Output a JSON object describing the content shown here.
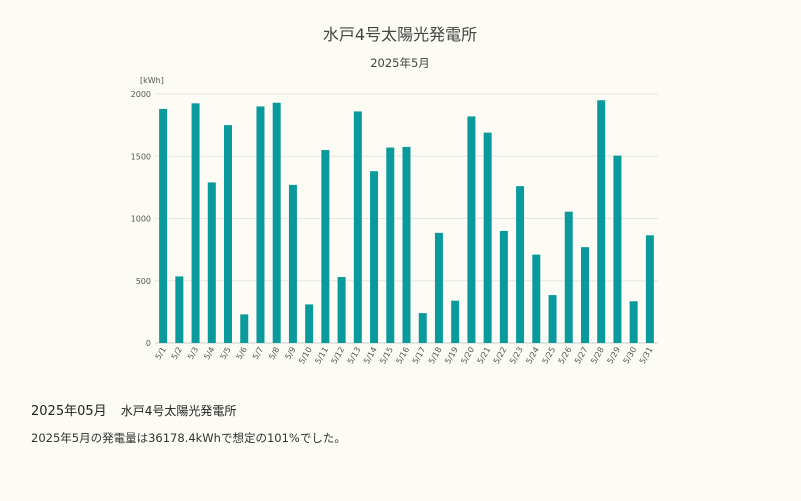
{
  "chart_data": {
    "type": "bar",
    "title": "水戸4号太陽光発電所",
    "subtitle": "2025年5月",
    "ylabel": "[kWh]",
    "xlabel": "",
    "ylim": [
      0,
      2000
    ],
    "yticks": [
      0,
      500,
      1000,
      1500,
      2000
    ],
    "grid": true,
    "bar_color": "#0a9a9c",
    "categories": [
      "5/1",
      "5/2",
      "5/3",
      "5/4",
      "5/5",
      "5/6",
      "5/7",
      "5/8",
      "5/9",
      "5/10",
      "5/11",
      "5/12",
      "5/13",
      "5/14",
      "5/15",
      "5/16",
      "5/17",
      "5/18",
      "5/19",
      "5/20",
      "5/21",
      "5/22",
      "5/23",
      "5/24",
      "5/25",
      "5/26",
      "5/27",
      "5/28",
      "5/29",
      "5/30",
      "5/31"
    ],
    "values": [
      1880,
      535,
      1925,
      1290,
      1750,
      230,
      1900,
      1930,
      1270,
      310,
      1550,
      530,
      1860,
      1380,
      1570,
      1575,
      240,
      885,
      340,
      1820,
      1690,
      900,
      1260,
      710,
      385,
      1055,
      770,
      1950,
      1505,
      335,
      865
    ]
  },
  "summary": {
    "month": "2025年05月",
    "plant": "水戸4号太陽光発電所",
    "text": "2025年5月の発電量は36178.4kWhで想定の101%でした。"
  }
}
